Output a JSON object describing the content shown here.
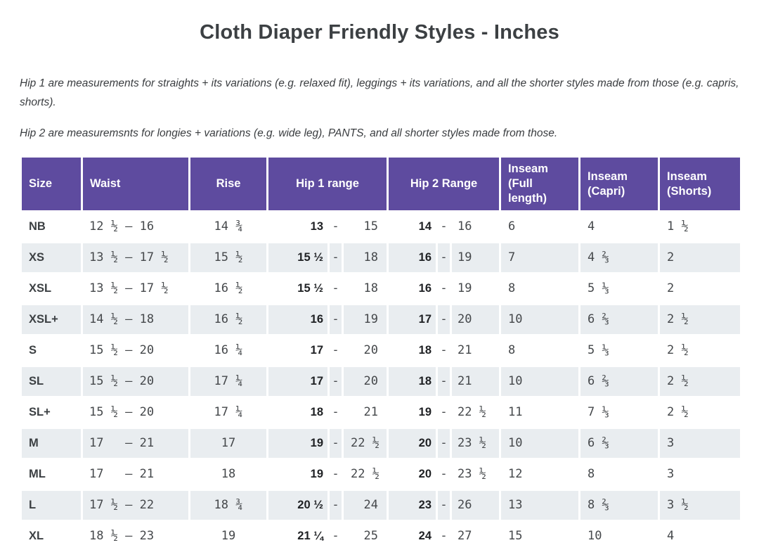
{
  "title": "Cloth Diaper Friendly Styles - Inches",
  "notes": [
    "Hip 1 are measurements for straights + its variations (e.g. relaxed fit), leggings + its variations, and all the shorter styles made from those (e.g. capris, shorts).",
    "Hip 2 are measuremsnts for longies + variations (e.g. wide leg), PANTS, and all shorter styles made from those."
  ],
  "colors": {
    "header_background": "#5e4b9f",
    "header_text": "#ffffff",
    "row_stripe": "#e9edf0",
    "body_text": "#45484b"
  },
  "table": {
    "range_separator": "-",
    "headers": {
      "size": "Size",
      "waist": "Waist",
      "rise": "Rise",
      "hip1": "Hip 1 range",
      "hip2": "Hip 2 Range",
      "inseam_full": "Inseam (Full length)",
      "inseam_capri": "Inseam (Capri)",
      "inseam_shorts": "Inseam (Shorts)"
    },
    "rows": [
      {
        "size": "NB",
        "waist": "12 ½ – 16",
        "rise": "14 ¾",
        "hip1_min": "13",
        "hip1_max": "15",
        "hip2_min": "14",
        "hip2_max": "16",
        "inseam_full": "6",
        "inseam_capri": "4",
        "inseam_shorts": "1 ½"
      },
      {
        "size": "XS",
        "waist": "13 ½ – 17 ½",
        "rise": "15 ½",
        "hip1_min": "15 ½",
        "hip1_max": "18",
        "hip2_min": "16",
        "hip2_max": "19",
        "inseam_full": "7",
        "inseam_capri": "4 ⅔",
        "inseam_shorts": "2"
      },
      {
        "size": "XSL",
        "waist": "13 ½ – 17 ½",
        "rise": "16 ½",
        "hip1_min": "15 ½",
        "hip1_max": "18",
        "hip2_min": "16",
        "hip2_max": "19",
        "inseam_full": "8",
        "inseam_capri": "5 ⅓",
        "inseam_shorts": "2"
      },
      {
        "size": "XSL+",
        "waist": "14 ½ – 18",
        "rise": "16 ½",
        "hip1_min": "16",
        "hip1_max": "19",
        "hip2_min": "17",
        "hip2_max": "20",
        "inseam_full": "10",
        "inseam_capri": "6 ⅔",
        "inseam_shorts": "2 ½"
      },
      {
        "size": "S",
        "waist": "15 ½ – 20",
        "rise": "16 ¼",
        "hip1_min": "17",
        "hip1_max": "20",
        "hip2_min": "18",
        "hip2_max": "21",
        "inseam_full": "8",
        "inseam_capri": "5 ⅓",
        "inseam_shorts": "2 ½"
      },
      {
        "size": "SL",
        "waist": "15 ½ – 20",
        "rise": "17 ¼",
        "hip1_min": "17",
        "hip1_max": "20",
        "hip2_min": "18",
        "hip2_max": "21",
        "inseam_full": "10",
        "inseam_capri": "6 ⅔",
        "inseam_shorts": "2 ½"
      },
      {
        "size": "SL+",
        "waist": "15 ½ – 20",
        "rise": "17 ¼",
        "hip1_min": "18",
        "hip1_max": "21",
        "hip2_min": "19",
        "hip2_max": "22 ½",
        "inseam_full": "11",
        "inseam_capri": "7 ⅓",
        "inseam_shorts": "2 ½"
      },
      {
        "size": "M",
        "waist": "17   – 21",
        "rise": "17",
        "hip1_min": "19",
        "hip1_max": "22 ½",
        "hip2_min": "20",
        "hip2_max": "23 ½",
        "inseam_full": "10",
        "inseam_capri": "6 ⅔",
        "inseam_shorts": "3"
      },
      {
        "size": "ML",
        "waist": "17   – 21",
        "rise": "18",
        "hip1_min": "19",
        "hip1_max": "22 ½",
        "hip2_min": "20",
        "hip2_max": "23 ½",
        "inseam_full": "12",
        "inseam_capri": "8",
        "inseam_shorts": "3"
      },
      {
        "size": "L",
        "waist": "17 ½ – 22",
        "rise": "18 ¾",
        "hip1_min": "20 ½",
        "hip1_max": "24",
        "hip2_min": "23",
        "hip2_max": "26",
        "inseam_full": "13",
        "inseam_capri": "8 ⅔",
        "inseam_shorts": "3 ½"
      },
      {
        "size": "XL",
        "waist": "18 ½ – 23",
        "rise": "19",
        "hip1_min": "21 ¼",
        "hip1_max": "25",
        "hip2_min": "24",
        "hip2_max": "27",
        "inseam_full": "15",
        "inseam_capri": "10",
        "inseam_shorts": "4"
      }
    ]
  }
}
